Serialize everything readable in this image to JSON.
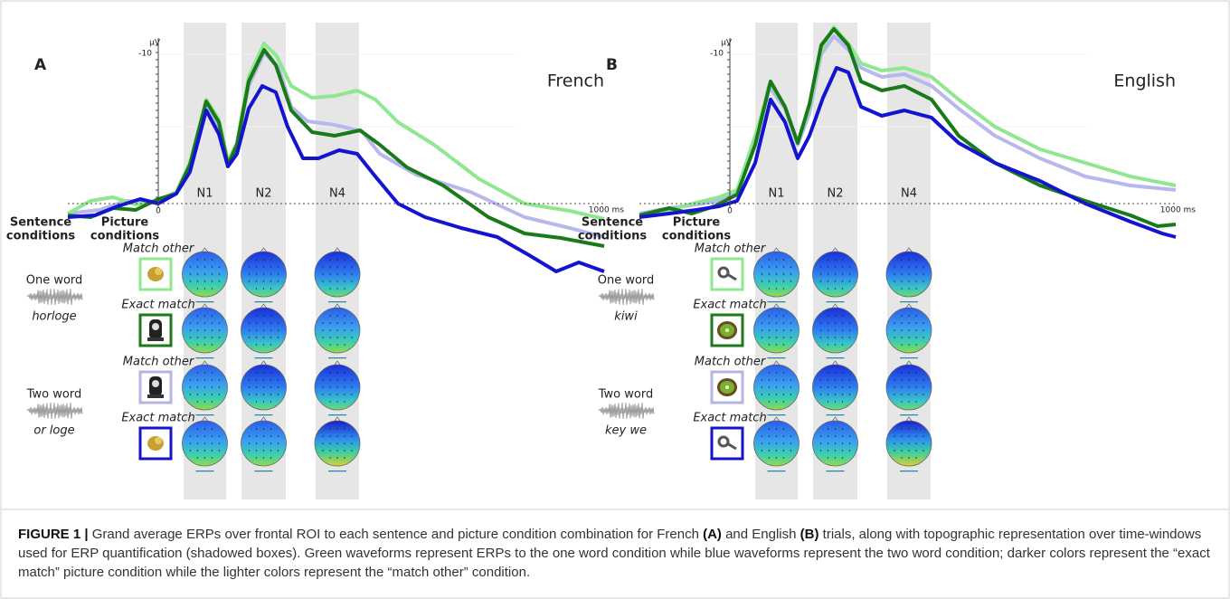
{
  "figure": {
    "panels": [
      {
        "label": "A",
        "language": "French",
        "y_unit": "µV",
        "y_tick": "-10",
        "x_start": "0",
        "x_end": "1000 ms",
        "windows": [
          "N1",
          "N2",
          "N4"
        ],
        "sentence_header": [
          "Sentence",
          "conditions"
        ],
        "picture_header": [
          "Picture",
          "conditions"
        ],
        "sentences": [
          {
            "name": "One word",
            "word": "horloge"
          },
          {
            "name": "Two word",
            "word": "or loge"
          }
        ],
        "rows": [
          {
            "label": "Match other",
            "color": "#8fe88f"
          },
          {
            "label": "Exact match",
            "color": "#1d7a1d"
          },
          {
            "label": "Match other",
            "color": "#b4b4e6"
          },
          {
            "label": "Exact match",
            "color": "#1414c8"
          }
        ]
      },
      {
        "label": "B",
        "language": "English",
        "y_unit": "µV",
        "y_tick": "-10",
        "x_start": "0",
        "x_end": "1000 ms",
        "windows": [
          "N1",
          "N2",
          "N4"
        ],
        "sentence_header": [
          "Sentence",
          "conditions"
        ],
        "picture_header": [
          "Picture",
          "conditions"
        ],
        "sentences": [
          {
            "name": "One word",
            "word": "kiwi"
          },
          {
            "name": "Two word",
            "word": "key we"
          }
        ],
        "rows": [
          {
            "label": "Match other",
            "color": "#8fe88f"
          },
          {
            "label": "Exact match",
            "color": "#1d7a1d"
          },
          {
            "label": "Match other",
            "color": "#b4b4e6"
          },
          {
            "label": "Exact match",
            "color": "#1414c8"
          }
        ]
      }
    ],
    "caption": {
      "label": "FIGURE 1 |",
      "text_1": " Grand average ERPs over frontal ROI to each sentence and picture condition combination for French ",
      "ref_a": "(A)",
      "text_2": " and English ",
      "ref_b": "(B)",
      "text_3": " trials, along with topographic representation over time-windows used for ERP quantification (shadowed boxes). Green waveforms represent ERPs to the one word condition while blue waveforms represent the two word condition; darker colors represent the “exact match” picture condition while the lighter colors represent the “match other” condition."
    }
  }
}
